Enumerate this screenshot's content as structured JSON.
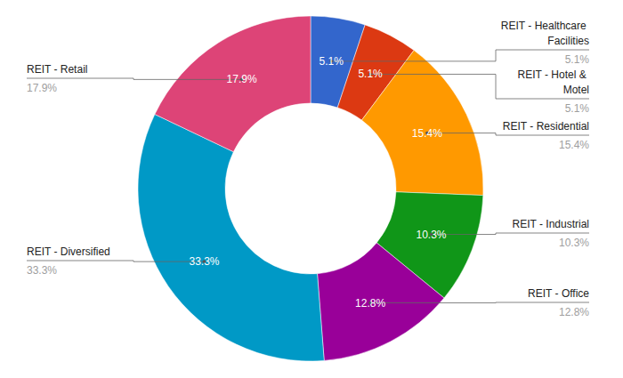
{
  "chart_data": {
    "type": "donut",
    "categories": [
      "REIT - Healthcare Facilities",
      "REIT - Hotel & Motel",
      "REIT - Residential",
      "REIT - Industrial",
      "REIT - Office",
      "REIT - Diversified",
      "REIT - Retail"
    ],
    "values": [
      5.1,
      5.1,
      15.4,
      10.3,
      12.8,
      33.3,
      17.9
    ],
    "value_labels": [
      "5.1%",
      "5.1%",
      "15.4%",
      "10.3%",
      "12.8%",
      "33.3%",
      "17.9%"
    ],
    "colors": [
      "#3366cc",
      "#dc3912",
      "#ff9900",
      "#109618",
      "#990099",
      "#0099c6",
      "#dd4477"
    ],
    "data_labels": true
  }
}
